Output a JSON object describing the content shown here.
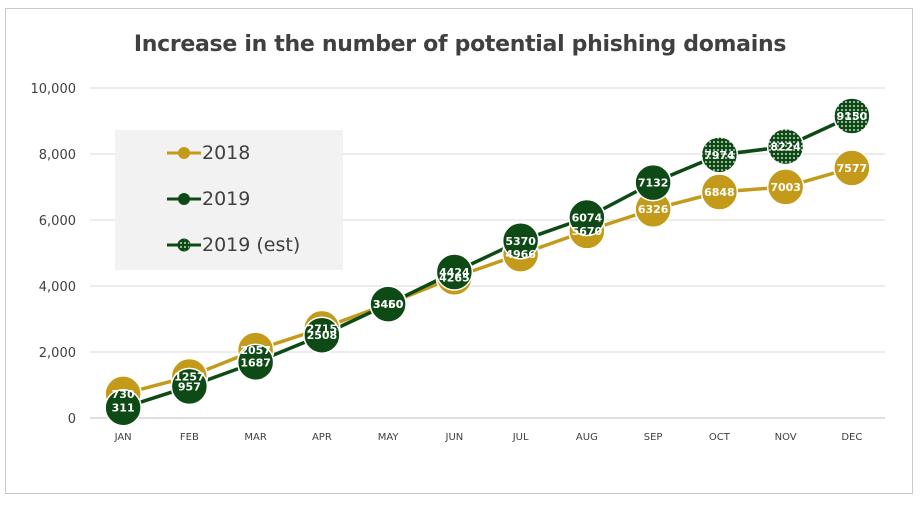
{
  "chart_data": {
    "type": "line",
    "title": "Increase in the number of potential phishing domains",
    "categories": [
      "JAN",
      "FEB",
      "MAR",
      "APR",
      "MAY",
      "JUN",
      "JUL",
      "AUG",
      "SEP",
      "OCT",
      "NOV",
      "DEC"
    ],
    "ylim": [
      0,
      10000
    ],
    "yticks": [
      0,
      2000,
      4000,
      6000,
      8000,
      10000
    ],
    "ytick_labels": [
      "0",
      "2,000",
      "4,000",
      "6,000",
      "8,000",
      "10,000"
    ],
    "grid": true,
    "legend_position": "upper-left",
    "series": [
      {
        "name": "2018",
        "color": "#c49a1a",
        "values": [
          730,
          1257,
          2057,
          2715,
          3460,
          4265,
          4966,
          5670,
          6326,
          6848,
          7003,
          7577
        ]
      },
      {
        "name": "2019",
        "color": "#0e4a16",
        "values": [
          311,
          957,
          1687,
          2508,
          3450,
          4424,
          5370,
          6074,
          7132,
          null,
          null,
          null
        ]
      },
      {
        "name": "2019 (est)",
        "color": "#0e4a16",
        "pattern": "dotted",
        "values": [
          null,
          null,
          null,
          null,
          null,
          null,
          null,
          null,
          7132,
          7974,
          8224,
          9150
        ]
      }
    ],
    "data_labels": {
      "2018": [
        "730",
        "1257",
        "2057",
        "2715",
        "3460",
        "4265",
        "4966",
        "5670",
        "6326",
        "6848",
        "7003",
        "7577"
      ],
      "2019": [
        "311",
        "957",
        "1687",
        "2508",
        "3450",
        "4424",
        "5370",
        "6074",
        "7132",
        "7974",
        "8224",
        "9150"
      ]
    }
  },
  "legend": {
    "items": [
      {
        "label": "2018"
      },
      {
        "label": "2019"
      },
      {
        "label": "2019 (est)"
      }
    ]
  }
}
